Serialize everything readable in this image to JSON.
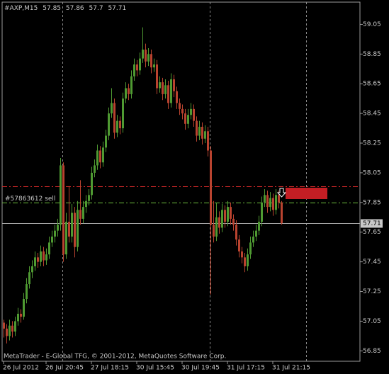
{
  "chart_data": {
    "type": "candlestick",
    "symbol": "#AXP,M15",
    "footer": "MetaTrader - E-Global TFG, © 2001-2012, MetaQuotes Software Corp.",
    "ylim": [
      56.78,
      59.2
    ],
    "yticks": [
      56.85,
      57.05,
      57.25,
      57.45,
      57.65,
      57.85,
      58.05,
      58.25,
      58.45,
      58.65,
      58.85,
      59.05
    ],
    "bull_color": "#4f9a32",
    "bear_color": "#b9432f",
    "categories": [
      "26 Jul 2012",
      null,
      null,
      null,
      null,
      null,
      null,
      null,
      null,
      null,
      null,
      null,
      null,
      null,
      null,
      "26 Jul 20:45",
      null,
      null,
      null,
      null,
      null,
      null,
      null,
      null,
      null,
      null,
      null,
      null,
      null,
      null,
      null,
      "27 Jul 18:15",
      null,
      null,
      null,
      null,
      null,
      null,
      null,
      null,
      null,
      null,
      null,
      null,
      null,
      null,
      null,
      "30 Jul 15:45",
      null,
      null,
      null,
      null,
      null,
      null,
      null,
      null,
      null,
      null,
      null,
      null,
      null,
      null,
      null,
      "30 Jul 19:45",
      null,
      null,
      null,
      null,
      null,
      null,
      null,
      null,
      null,
      null,
      null,
      null,
      null,
      null,
      null,
      "31 Jul 17:15",
      null,
      null,
      null,
      null,
      null,
      null,
      null,
      null,
      null,
      null,
      null,
      null,
      null,
      null,
      null,
      "31 Jul 21:15",
      null,
      null,
      null
    ],
    "ohlc": [
      [
        57.04,
        57.06,
        56.94,
        57.0
      ],
      [
        57.0,
        57.03,
        56.9,
        56.95
      ],
      [
        56.95,
        57.06,
        56.92,
        57.02
      ],
      [
        57.02,
        57.05,
        56.94,
        56.98
      ],
      [
        56.98,
        57.08,
        56.95,
        57.05
      ],
      [
        57.05,
        57.14,
        57.02,
        57.1
      ],
      [
        57.1,
        57.13,
        57.04,
        57.08
      ],
      [
        57.08,
        57.24,
        57.06,
        57.2
      ],
      [
        57.2,
        57.34,
        57.17,
        57.3
      ],
      [
        57.3,
        57.42,
        57.27,
        57.38
      ],
      [
        57.38,
        57.46,
        57.34,
        57.42
      ],
      [
        57.42,
        57.52,
        57.39,
        57.48
      ],
      [
        57.48,
        57.51,
        57.41,
        57.45
      ],
      [
        57.45,
        57.56,
        57.42,
        57.52
      ],
      [
        57.52,
        57.55,
        57.42,
        57.46
      ],
      [
        57.46,
        57.54,
        57.43,
        57.5
      ],
      [
        57.5,
        57.62,
        57.47,
        57.58
      ],
      [
        57.58,
        57.66,
        57.55,
        57.62
      ],
      [
        57.62,
        57.7,
        57.58,
        57.66
      ],
      [
        57.66,
        57.74,
        57.62,
        57.7
      ],
      [
        57.7,
        58.15,
        57.66,
        58.1
      ],
      [
        58.1,
        58.12,
        57.45,
        57.5
      ],
      [
        57.5,
        57.78,
        57.47,
        57.72
      ],
      [
        57.72,
        57.96,
        57.58,
        57.62
      ],
      [
        57.62,
        57.84,
        57.58,
        57.78
      ],
      [
        57.78,
        57.82,
        57.48,
        57.55
      ],
      [
        57.55,
        57.86,
        57.52,
        57.8
      ],
      [
        57.8,
        58.0,
        57.7,
        57.74
      ],
      [
        57.74,
        57.86,
        57.71,
        57.82
      ],
      [
        57.82,
        57.9,
        57.78,
        57.86
      ],
      [
        57.86,
        57.94,
        57.83,
        57.9
      ],
      [
        57.9,
        58.09,
        57.87,
        58.05
      ],
      [
        58.05,
        58.14,
        58.02,
        58.1
      ],
      [
        58.1,
        58.24,
        58.07,
        58.2
      ],
      [
        58.2,
        58.23,
        58.08,
        58.12
      ],
      [
        58.12,
        58.26,
        58.09,
        58.22
      ],
      [
        58.22,
        58.34,
        58.19,
        58.3
      ],
      [
        58.3,
        58.49,
        58.27,
        58.45
      ],
      [
        58.45,
        58.62,
        58.42,
        58.52
      ],
      [
        58.52,
        58.55,
        58.28,
        58.32
      ],
      [
        58.32,
        58.44,
        58.29,
        58.4
      ],
      [
        58.4,
        58.43,
        58.31,
        58.35
      ],
      [
        58.35,
        58.59,
        58.32,
        58.55
      ],
      [
        58.55,
        58.66,
        58.52,
        58.62
      ],
      [
        58.62,
        58.65,
        58.54,
        58.58
      ],
      [
        58.58,
        58.74,
        58.55,
        58.7
      ],
      [
        58.7,
        58.82,
        58.67,
        58.78
      ],
      [
        58.78,
        58.81,
        58.7,
        58.74
      ],
      [
        58.74,
        58.86,
        58.71,
        58.82
      ],
      [
        58.82,
        59.03,
        58.79,
        58.88
      ],
      [
        58.88,
        58.92,
        58.76,
        58.8
      ],
      [
        58.8,
        58.89,
        58.77,
        58.85
      ],
      [
        58.85,
        58.88,
        58.72,
        58.76
      ],
      [
        58.76,
        58.82,
        58.73,
        58.78
      ],
      [
        58.78,
        58.81,
        58.58,
        58.62
      ],
      [
        58.62,
        58.7,
        58.59,
        58.66
      ],
      [
        58.66,
        58.69,
        58.54,
        58.58
      ],
      [
        58.58,
        58.68,
        58.55,
        58.64
      ],
      [
        58.64,
        58.67,
        58.48,
        58.52
      ],
      [
        58.52,
        58.72,
        58.49,
        58.68
      ],
      [
        58.68,
        58.71,
        58.56,
        58.6
      ],
      [
        58.6,
        58.63,
        58.48,
        58.52
      ],
      [
        58.52,
        58.55,
        58.44,
        58.48
      ],
      [
        58.48,
        58.51,
        58.41,
        58.45
      ],
      [
        58.45,
        58.48,
        58.34,
        58.38
      ],
      [
        58.38,
        58.48,
        58.35,
        58.44
      ],
      [
        58.44,
        58.52,
        58.41,
        58.48
      ],
      [
        58.48,
        58.51,
        58.36,
        58.4
      ],
      [
        58.4,
        58.43,
        58.26,
        58.3
      ],
      [
        58.3,
        58.4,
        58.27,
        58.36
      ],
      [
        58.36,
        58.39,
        58.24,
        58.28
      ],
      [
        58.28,
        58.37,
        58.25,
        58.33
      ],
      [
        58.33,
        58.36,
        58.16,
        58.2
      ],
      [
        58.2,
        58.23,
        57.23,
        57.7
      ],
      [
        57.7,
        57.86,
        57.58,
        57.62
      ],
      [
        57.62,
        57.85,
        57.59,
        57.75
      ],
      [
        57.75,
        57.79,
        57.64,
        57.68
      ],
      [
        57.68,
        57.84,
        57.65,
        57.8
      ],
      [
        57.8,
        57.83,
        57.68,
        57.72
      ],
      [
        57.72,
        57.86,
        57.69,
        57.82
      ],
      [
        57.82,
        57.85,
        57.7,
        57.74
      ],
      [
        57.74,
        57.77,
        57.66,
        57.7
      ],
      [
        57.7,
        57.73,
        57.56,
        57.6
      ],
      [
        57.6,
        57.63,
        57.48,
        57.52
      ],
      [
        57.52,
        57.55,
        57.44,
        57.48
      ],
      [
        57.48,
        57.51,
        57.38,
        57.42
      ],
      [
        57.42,
        57.54,
        57.39,
        57.5
      ],
      [
        57.5,
        57.62,
        57.47,
        57.58
      ],
      [
        57.58,
        57.66,
        57.55,
        57.62
      ],
      [
        57.62,
        57.7,
        57.59,
        57.66
      ],
      [
        57.66,
        57.76,
        57.63,
        57.72
      ],
      [
        57.72,
        57.89,
        57.69,
        57.85
      ],
      [
        57.85,
        57.94,
        57.82,
        57.9
      ],
      [
        57.9,
        57.93,
        57.78,
        57.82
      ],
      [
        57.82,
        57.92,
        57.79,
        57.88
      ],
      [
        57.88,
        57.91,
        57.76,
        57.8
      ],
      [
        57.8,
        57.94,
        57.77,
        57.9
      ],
      [
        57.9,
        57.93,
        57.81,
        57.85
      ],
      [
        57.85,
        57.86,
        57.7,
        57.71
      ]
    ],
    "levels": [
      {
        "value": 57.96,
        "color": "#d02828"
      },
      {
        "value": 57.85,
        "label": "#57863612 sell",
        "color": "#6fbf3f"
      }
    ]
  }
}
